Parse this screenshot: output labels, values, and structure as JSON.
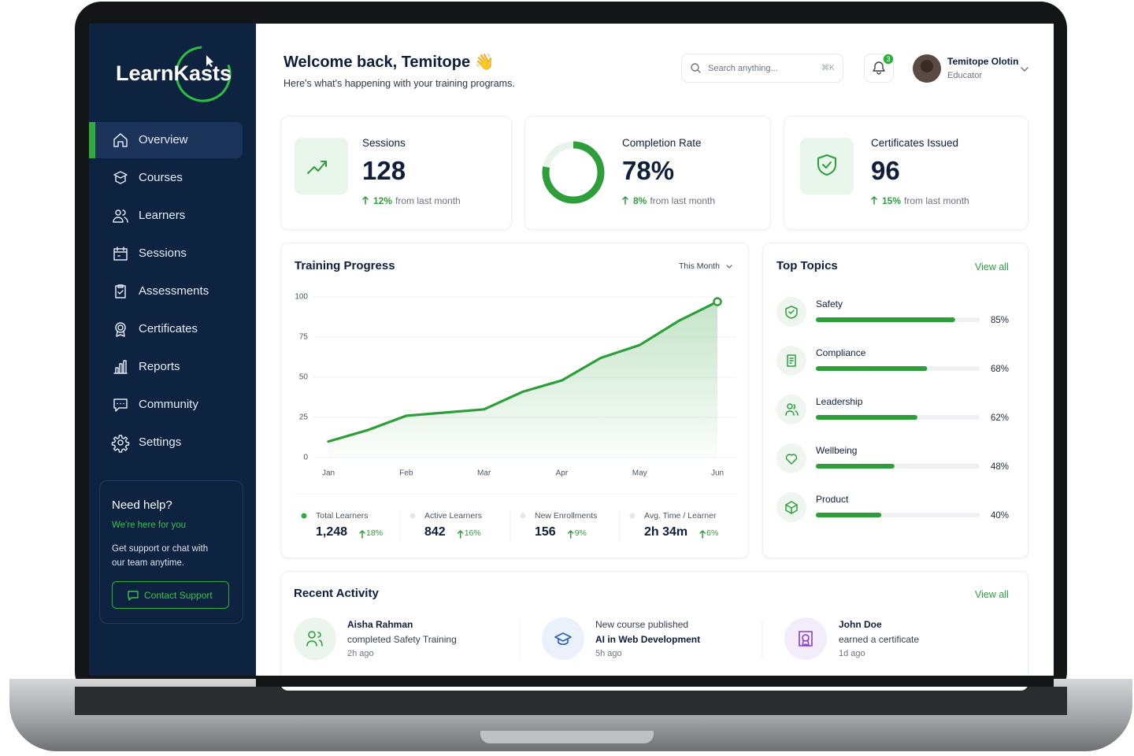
{
  "brand": "LearnKasts",
  "nav": [
    "Overview",
    "Courses",
    "Learners",
    "Sessions",
    "Assessments",
    "Certificates",
    "Reports",
    "Community",
    "Settings"
  ],
  "help": {
    "title": "Need help?",
    "subtitle": "We're here for you",
    "text": "Get support or chat with our team anytime.",
    "button": "Contact Support"
  },
  "header": {
    "title": "Welcome back, Temitope 👋",
    "subtitle": "Here's what's happening with your training programs.",
    "search": "Search anything...",
    "shortcut": "⌘K",
    "notifications": 3,
    "user": "Temitope Olotin",
    "role": "Educator"
  },
  "stats": [
    {
      "label": "Sessions",
      "value": 128,
      "change": "12%",
      "note": "from last month"
    },
    {
      "label": "Completion Rate",
      "value": 78,
      "value_label": "78%",
      "change": "8%",
      "note": "from last month"
    },
    {
      "label": "Certificates Issued",
      "value": 96,
      "change": "15%",
      "note": "from last month"
    }
  ],
  "chart_data": {
    "type": "line",
    "title": "Training Progress",
    "period": "This Month",
    "categories": [
      "Jan",
      null,
      "Feb",
      null,
      "Mar",
      null,
      "Apr",
      null,
      "May",
      null,
      "Jun"
    ],
    "values": [
      10,
      17,
      26,
      28,
      30,
      41,
      48,
      62,
      70,
      85,
      97
    ],
    "color": "#2e9e3a",
    "ylim": [
      0,
      100
    ],
    "yticks": [
      0,
      25,
      50,
      75,
      100
    ],
    "grid": true
  },
  "summary": [
    {
      "label": "Total Learners",
      "value": "1,248",
      "change": "18%"
    },
    {
      "label": "Active Learners",
      "value": "842",
      "change": "16%"
    },
    {
      "label": "New Enrollments",
      "value": "156",
      "change": "9%"
    },
    {
      "label": "Avg. Time / Learner",
      "value": "2h 34m",
      "change": "6%"
    }
  ],
  "topics": {
    "title": "Top Topics",
    "link": "View all",
    "items": [
      {
        "name": "Safety",
        "value": 85,
        "value_label": "85%"
      },
      {
        "name": "Compliance",
        "value": 68,
        "value_label": "68%"
      },
      {
        "name": "Leadership",
        "value": 62,
        "value_label": "62%"
      },
      {
        "name": "Wellbeing",
        "value": 48,
        "value_label": "48%"
      },
      {
        "name": "Product",
        "value": 40,
        "value_label": "40%"
      }
    ]
  },
  "activity": {
    "title": "Recent Activity",
    "link": "View all",
    "items": [
      {
        "name": "Aisha Rahman",
        "action": "completed Safety Training",
        "time": "2h ago"
      },
      {
        "name": "New course published",
        "action": "AI in Web Development",
        "time": "5h ago"
      },
      {
        "name": "John Doe",
        "action": "earned a certificate",
        "time": "1d ago"
      }
    ]
  }
}
